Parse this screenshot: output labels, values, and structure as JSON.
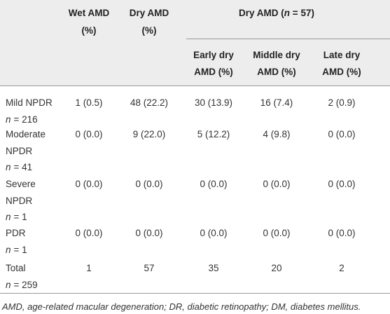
{
  "header": {
    "columns": [
      [
        "Wet AMD",
        "(%)"
      ],
      [
        "Dry AMD",
        "(%)"
      ]
    ],
    "group": {
      "prefix": "Dry AMD (",
      "n": "n",
      "suffix": " = 57)"
    },
    "subcolumns": [
      [
        "Early dry",
        "AMD (%)"
      ],
      [
        "Middle dry",
        "AMD (%)"
      ],
      [
        "Late dry",
        "AMD (%)"
      ]
    ]
  },
  "rows": [
    {
      "label": [
        "Mild NPDR"
      ],
      "n": "n",
      "count": "= 216",
      "cells": [
        "1 (0.5)",
        "48 (22.2)",
        "30 (13.9)",
        "16 (7.4)",
        "2 (0.9)"
      ]
    },
    {
      "label": [
        "Moderate",
        "NPDR"
      ],
      "n": "n",
      "count": "= 41",
      "cells": [
        "0 (0.0)",
        "9 (22.0)",
        "5 (12.2)",
        "4 (9.8)",
        "0 (0.0)"
      ]
    },
    {
      "label": [
        "Severe",
        "NPDR"
      ],
      "n": "n",
      "count": "= 1",
      "cells": [
        "0 (0.0)",
        "0 (0.0)",
        "0 (0.0)",
        "0 (0.0)",
        "0 (0.0)"
      ]
    },
    {
      "label": [
        "PDR"
      ],
      "n": "n",
      "count": "= 1",
      "cells": [
        "0 (0.0)",
        "0 (0.0)",
        "0 (0.0)",
        "0 (0.0)",
        "0 (0.0)"
      ]
    },
    {
      "label": [
        "Total"
      ],
      "n": "n",
      "count": "= 259",
      "cells": [
        "1",
        "57",
        "35",
        "20",
        "2"
      ]
    }
  ],
  "footnote": "AMD, age-related macular degeneration; DR, diabetic retinopathy; DM, diabetes mellitus."
}
